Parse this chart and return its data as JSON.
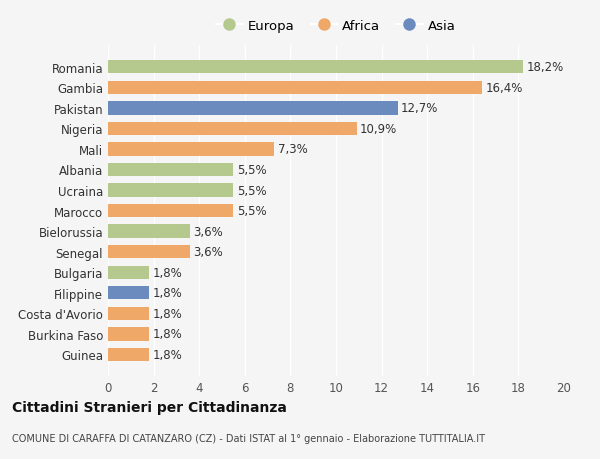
{
  "countries": [
    "Guinea",
    "Burkina Faso",
    "Costa d'Avorio",
    "Filippine",
    "Bulgaria",
    "Senegal",
    "Bielorussia",
    "Marocco",
    "Ucraina",
    "Albania",
    "Mali",
    "Nigeria",
    "Pakistan",
    "Gambia",
    "Romania"
  ],
  "values": [
    1.8,
    1.8,
    1.8,
    1.8,
    1.8,
    3.6,
    3.6,
    5.5,
    5.5,
    5.5,
    7.3,
    10.9,
    12.7,
    16.4,
    18.2
  ],
  "labels": [
    "1,8%",
    "1,8%",
    "1,8%",
    "1,8%",
    "1,8%",
    "3,6%",
    "3,6%",
    "5,5%",
    "5,5%",
    "5,5%",
    "7,3%",
    "10,9%",
    "12,7%",
    "16,4%",
    "18,2%"
  ],
  "continents": [
    "Africa",
    "Africa",
    "Africa",
    "Asia",
    "Europa",
    "Africa",
    "Europa",
    "Africa",
    "Europa",
    "Europa",
    "Africa",
    "Africa",
    "Asia",
    "Africa",
    "Europa"
  ],
  "colors": {
    "Europa": "#b5c98e",
    "Africa": "#f0a868",
    "Asia": "#6b8bbf"
  },
  "legend_labels": [
    "Europa",
    "Africa",
    "Asia"
  ],
  "title1": "Cittadini Stranieri per Cittadinanza",
  "title2": "COMUNE DI CARAFFA DI CATANZARO (CZ) - Dati ISTAT al 1° gennaio - Elaborazione TUTTITALIA.IT",
  "xlim": [
    0,
    20
  ],
  "xticks": [
    0,
    2,
    4,
    6,
    8,
    10,
    12,
    14,
    16,
    18,
    20
  ],
  "background_color": "#f5f5f5",
  "bar_height": 0.65,
  "grid_color": "#ffffff",
  "label_fontsize": 8.5,
  "tick_fontsize": 8.5,
  "title1_fontsize": 10,
  "title2_fontsize": 7
}
